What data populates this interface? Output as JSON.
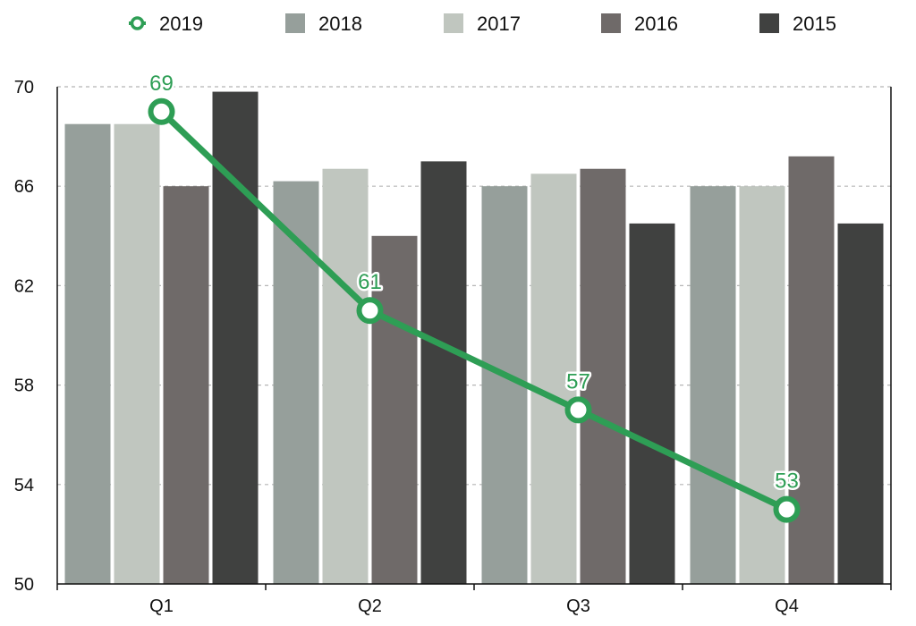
{
  "chart_data": {
    "type": "bar",
    "categories": [
      "Q1",
      "Q2",
      "Q3",
      "Q4"
    ],
    "series": [
      {
        "name": "2019",
        "kind": "line",
        "values": [
          69,
          61,
          57,
          53
        ],
        "color": "#2e9e55"
      },
      {
        "name": "2018",
        "kind": "bar",
        "values": [
          68.5,
          66.2,
          66.0,
          66.0
        ],
        "color": "#969f9b"
      },
      {
        "name": "2017",
        "kind": "bar",
        "values": [
          68.5,
          66.7,
          66.5,
          66.0
        ],
        "color": "#c0c6bf"
      },
      {
        "name": "2016",
        "kind": "bar",
        "values": [
          66.0,
          64.0,
          66.7,
          67.2
        ],
        "color": "#6f6a69"
      },
      {
        "name": "2015",
        "kind": "bar",
        "values": [
          69.8,
          67.0,
          64.5,
          64.5
        ],
        "color": "#404140"
      }
    ],
    "data_labels": [
      "69",
      "61",
      "57",
      "53"
    ],
    "yticks": [
      "50",
      "54",
      "58",
      "62",
      "66",
      "70"
    ],
    "ylim": [
      50,
      70
    ],
    "grid": true,
    "legend_position": "top"
  }
}
